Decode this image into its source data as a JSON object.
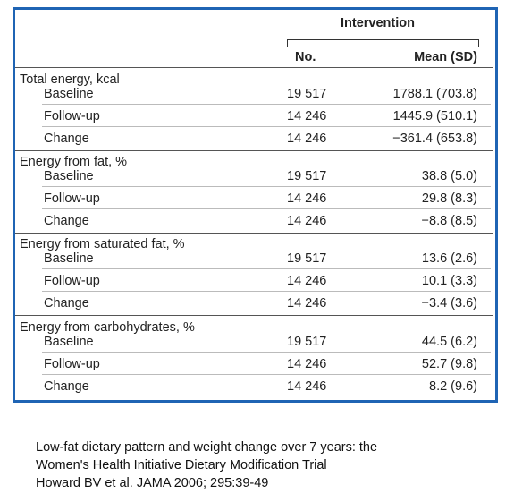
{
  "table": {
    "header": {
      "group": "Intervention",
      "columns": [
        "No.",
        "Mean (SD)"
      ]
    },
    "groups": [
      {
        "title": "Total energy, kcal",
        "rows": [
          [
            "Baseline",
            "19 517",
            "1788.1 (703.8)"
          ],
          [
            "Follow-up",
            "14 246",
            "1445.9 (510.1)"
          ],
          [
            "Change",
            "14 246",
            "−361.4 (653.8)"
          ]
        ]
      },
      {
        "title": "Energy from fat, %",
        "rows": [
          [
            "Baseline",
            "19 517",
            "38.8 (5.0)"
          ],
          [
            "Follow-up",
            "14 246",
            "29.8 (8.3)"
          ],
          [
            "Change",
            "14 246",
            "−8.8 (8.5)"
          ]
        ]
      },
      {
        "title": "Energy from saturated fat, %",
        "rows": [
          [
            "Baseline",
            "19 517",
            "13.6 (2.6)"
          ],
          [
            "Follow-up",
            "14 246",
            "10.1 (3.3)"
          ],
          [
            "Change",
            "14 246",
            "−3.4 (3.6)"
          ]
        ]
      },
      {
        "title": "Energy from carbohydrates, %",
        "rows": [
          [
            "Baseline",
            "19 517",
            "44.5 (6.2)"
          ],
          [
            "Follow-up",
            "14 246",
            "52.7 (9.8)"
          ],
          [
            "Change",
            "14 246",
            "8.2 (9.6)"
          ]
        ]
      }
    ]
  },
  "caption": [
    "Low-fat dietary pattern and weight change over 7 years: the",
    "Women's Health Initiative Dietary Modification Trial",
    "Howard BV et al. JAMA 2006; 295:39-49"
  ]
}
